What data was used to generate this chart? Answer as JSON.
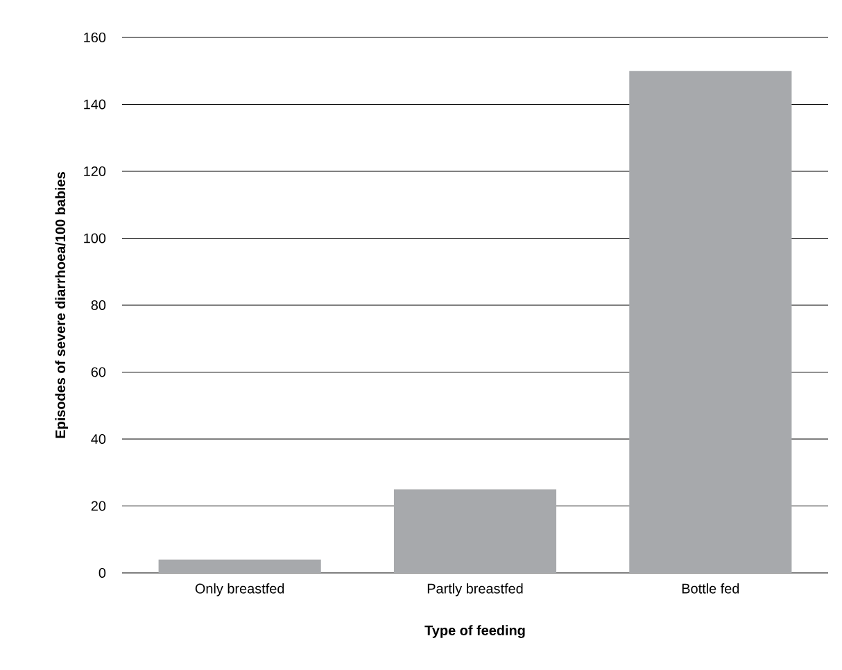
{
  "chart_data": {
    "type": "bar",
    "xlabel": "Type of feeding",
    "ylabel": "Episodes of severe diarrhoea/100 babies",
    "categories": [
      "Only breastfed",
      "Partly breastfed",
      "Bottle fed"
    ],
    "values": [
      4,
      25,
      150
    ],
    "color": "#a7a9ac",
    "ylim": [
      0,
      160
    ],
    "yticks": [
      0,
      20,
      40,
      60,
      80,
      100,
      120,
      140,
      160
    ],
    "grid": "y"
  }
}
